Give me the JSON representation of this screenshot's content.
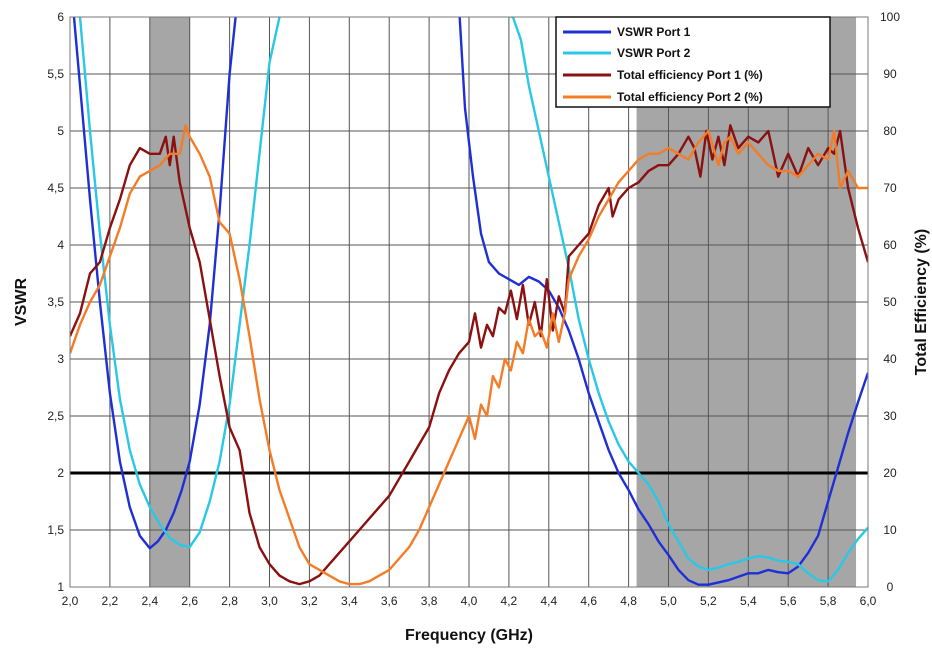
{
  "chart_data": {
    "type": "line",
    "xlabel": "Frequency (GHz)",
    "ylabel_left": "VSWR",
    "ylabel_right": "Total Efficiency (%)",
    "xlim": [
      2.0,
      6.0
    ],
    "ylim_left": [
      1,
      6
    ],
    "ylim_right": [
      0,
      100
    ],
    "grid": true,
    "legend_position": "top-right",
    "x_ticks": [
      "2,0",
      "2,2",
      "2,4",
      "2,6",
      "2,8",
      "3,0",
      "3,2",
      "3,4",
      "3,6",
      "3,8",
      "4,0",
      "4,2",
      "4,4",
      "4,6",
      "4,8",
      "5,0",
      "5,2",
      "5,4",
      "5,6",
      "5,8",
      "6,0"
    ],
    "y_left_ticks": [
      "1",
      "1,5",
      "2",
      "2,5",
      "3",
      "3,5",
      "4",
      "4,5",
      "5",
      "5,5",
      "6"
    ],
    "y_right_ticks": [
      "0",
      "10",
      "20",
      "30",
      "40",
      "50",
      "60",
      "70",
      "80",
      "90",
      "100"
    ],
    "shaded_bands": [
      {
        "x0": 2.4,
        "x1": 2.6,
        "color": "#a6a6a6"
      },
      {
        "x0": 4.84,
        "x1": 5.94,
        "color": "#a6a6a6"
      }
    ],
    "reference_line": {
      "axis": "left",
      "y": 2.0,
      "color": "#000000"
    },
    "series": [
      {
        "name": "VSWR Port 1",
        "axis": "left",
        "color": "#1f2fd6",
        "x": [
          2.02,
          2.05,
          2.1,
          2.15,
          2.2,
          2.25,
          2.3,
          2.35,
          2.4,
          2.44,
          2.48,
          2.52,
          2.56,
          2.6,
          2.65,
          2.7,
          2.75,
          2.8,
          2.83,
          2.86,
          3.95,
          3.98,
          4.02,
          4.06,
          4.1,
          4.15,
          4.2,
          4.25,
          4.3,
          4.35,
          4.4,
          4.45,
          4.5,
          4.55,
          4.6,
          4.65,
          4.7,
          4.75,
          4.8,
          4.85,
          4.9,
          4.95,
          5.0,
          5.05,
          5.1,
          5.15,
          5.2,
          5.25,
          5.3,
          5.35,
          5.4,
          5.45,
          5.5,
          5.55,
          5.6,
          5.65,
          5.7,
          5.75,
          5.8,
          5.85,
          5.9,
          5.95,
          6.0
        ],
        "y": [
          6.0,
          5.4,
          4.4,
          3.5,
          2.7,
          2.1,
          1.7,
          1.45,
          1.34,
          1.4,
          1.5,
          1.65,
          1.85,
          2.1,
          2.6,
          3.3,
          4.3,
          5.5,
          6.0,
          6.2,
          6.1,
          5.2,
          4.6,
          4.1,
          3.85,
          3.75,
          3.7,
          3.65,
          3.72,
          3.68,
          3.6,
          3.45,
          3.25,
          3.0,
          2.7,
          2.45,
          2.2,
          2.0,
          1.85,
          1.68,
          1.55,
          1.4,
          1.28,
          1.15,
          1.06,
          1.02,
          1.02,
          1.04,
          1.06,
          1.09,
          1.12,
          1.12,
          1.15,
          1.13,
          1.12,
          1.18,
          1.3,
          1.45,
          1.75,
          2.05,
          2.35,
          2.62,
          2.88
        ]
      },
      {
        "name": "VSWR Port 2",
        "axis": "left",
        "color": "#28c8e6",
        "x": [
          2.05,
          2.1,
          2.15,
          2.2,
          2.25,
          2.3,
          2.35,
          2.4,
          2.45,
          2.5,
          2.55,
          2.6,
          2.65,
          2.7,
          2.75,
          2.8,
          2.85,
          2.9,
          2.95,
          3.0,
          3.05,
          3.1,
          4.22,
          4.26,
          4.3,
          4.35,
          4.4,
          4.45,
          4.5,
          4.55,
          4.6,
          4.65,
          4.7,
          4.75,
          4.8,
          4.85,
          4.9,
          4.95,
          5.0,
          5.05,
          5.1,
          5.15,
          5.2,
          5.25,
          5.3,
          5.35,
          5.4,
          5.45,
          5.5,
          5.55,
          5.6,
          5.65,
          5.7,
          5.75,
          5.8,
          5.85,
          5.9,
          5.95,
          6.0
        ],
        "y": [
          6.0,
          5.0,
          4.1,
          3.3,
          2.65,
          2.2,
          1.9,
          1.7,
          1.55,
          1.43,
          1.37,
          1.35,
          1.48,
          1.75,
          2.1,
          2.6,
          3.3,
          4.0,
          4.8,
          5.6,
          6.0,
          6.4,
          6.0,
          5.8,
          5.4,
          5.0,
          4.6,
          4.2,
          3.8,
          3.35,
          3.0,
          2.7,
          2.45,
          2.25,
          2.1,
          2.0,
          1.9,
          1.75,
          1.55,
          1.4,
          1.25,
          1.18,
          1.15,
          1.17,
          1.2,
          1.22,
          1.25,
          1.27,
          1.26,
          1.23,
          1.22,
          1.2,
          1.12,
          1.06,
          1.05,
          1.15,
          1.3,
          1.42,
          1.52
        ]
      },
      {
        "name": "Total efficiency Port 1 (%)",
        "axis": "right",
        "color": "#8b1010",
        "x": [
          2.0,
          2.05,
          2.1,
          2.15,
          2.2,
          2.25,
          2.3,
          2.35,
          2.4,
          2.45,
          2.48,
          2.5,
          2.52,
          2.55,
          2.6,
          2.65,
          2.7,
          2.75,
          2.8,
          2.85,
          2.9,
          2.95,
          3.0,
          3.05,
          3.1,
          3.15,
          3.2,
          3.25,
          3.3,
          3.35,
          3.4,
          3.45,
          3.5,
          3.55,
          3.6,
          3.65,
          3.7,
          3.75,
          3.8,
          3.85,
          3.9,
          3.95,
          4.0,
          4.03,
          4.06,
          4.09,
          4.12,
          4.15,
          4.18,
          4.21,
          4.24,
          4.27,
          4.3,
          4.33,
          4.36,
          4.39,
          4.42,
          4.45,
          4.48,
          4.5,
          4.55,
          4.6,
          4.65,
          4.7,
          4.72,
          4.75,
          4.8,
          4.85,
          4.9,
          4.95,
          5.0,
          5.05,
          5.1,
          5.13,
          5.16,
          5.19,
          5.22,
          5.25,
          5.28,
          5.31,
          5.35,
          5.4,
          5.45,
          5.5,
          5.55,
          5.6,
          5.65,
          5.7,
          5.75,
          5.8,
          5.83,
          5.86,
          5.9,
          5.95,
          6.0
        ],
        "y": [
          44,
          48,
          55,
          57,
          63,
          68,
          74,
          77,
          76,
          76,
          79,
          74,
          79,
          71,
          63,
          57,
          47,
          37,
          28,
          24,
          13,
          7,
          4,
          2,
          1,
          0.5,
          1,
          2,
          4,
          6,
          8,
          10,
          12,
          14,
          16,
          19,
          22,
          25,
          28,
          34,
          38,
          41,
          43,
          48,
          42,
          46,
          44,
          49,
          48,
          52,
          47,
          53,
          46,
          50,
          44,
          54,
          45,
          51,
          48,
          58,
          60,
          62,
          67,
          70,
          65,
          68,
          70,
          71,
          73,
          74,
          74,
          76,
          79,
          77,
          72,
          80,
          75,
          79,
          74,
          81,
          77,
          79,
          78,
          80,
          72,
          76,
          72,
          77,
          74,
          77,
          76,
          80,
          70,
          63,
          57
        ]
      },
      {
        "name": "Total efficiency Port 2 (%)",
        "axis": "right",
        "color": "#f47c26",
        "x": [
          2.0,
          2.05,
          2.1,
          2.15,
          2.2,
          2.25,
          2.3,
          2.35,
          2.4,
          2.45,
          2.5,
          2.55,
          2.58,
          2.6,
          2.65,
          2.7,
          2.75,
          2.8,
          2.85,
          2.9,
          2.95,
          3.0,
          3.05,
          3.1,
          3.15,
          3.2,
          3.25,
          3.3,
          3.35,
          3.4,
          3.45,
          3.5,
          3.55,
          3.6,
          3.65,
          3.7,
          3.75,
          3.8,
          3.85,
          3.9,
          3.95,
          4.0,
          4.03,
          4.06,
          4.09,
          4.12,
          4.15,
          4.18,
          4.21,
          4.24,
          4.27,
          4.3,
          4.33,
          4.36,
          4.39,
          4.42,
          4.45,
          4.48,
          4.5,
          4.55,
          4.6,
          4.65,
          4.7,
          4.75,
          4.8,
          4.85,
          4.9,
          4.95,
          5.0,
          5.05,
          5.1,
          5.15,
          5.2,
          5.25,
          5.28,
          5.31,
          5.35,
          5.4,
          5.45,
          5.5,
          5.55,
          5.6,
          5.65,
          5.7,
          5.75,
          5.8,
          5.83,
          5.86,
          5.9,
          5.95,
          6.0
        ],
        "y": [
          41,
          46,
          50,
          53,
          58,
          63,
          69,
          72,
          73,
          74,
          76,
          76,
          81,
          79,
          76,
          72,
          64,
          62,
          54,
          44,
          33,
          24,
          17,
          12,
          7,
          4,
          3,
          2,
          1,
          0.5,
          0.5,
          1,
          2,
          3,
          5,
          7,
          10,
          14,
          18,
          22,
          26,
          30,
          26,
          32,
          30,
          37,
          35,
          40,
          38,
          43,
          41,
          47,
          44,
          45,
          42,
          48,
          43,
          48,
          54,
          58,
          61,
          65,
          68,
          71,
          73,
          75,
          76,
          76,
          77,
          76,
          75,
          78,
          80,
          74,
          78,
          79,
          76,
          78,
          76,
          74,
          73,
          73,
          72,
          74,
          76,
          75,
          80,
          70,
          73,
          70,
          70
        ]
      }
    ]
  }
}
